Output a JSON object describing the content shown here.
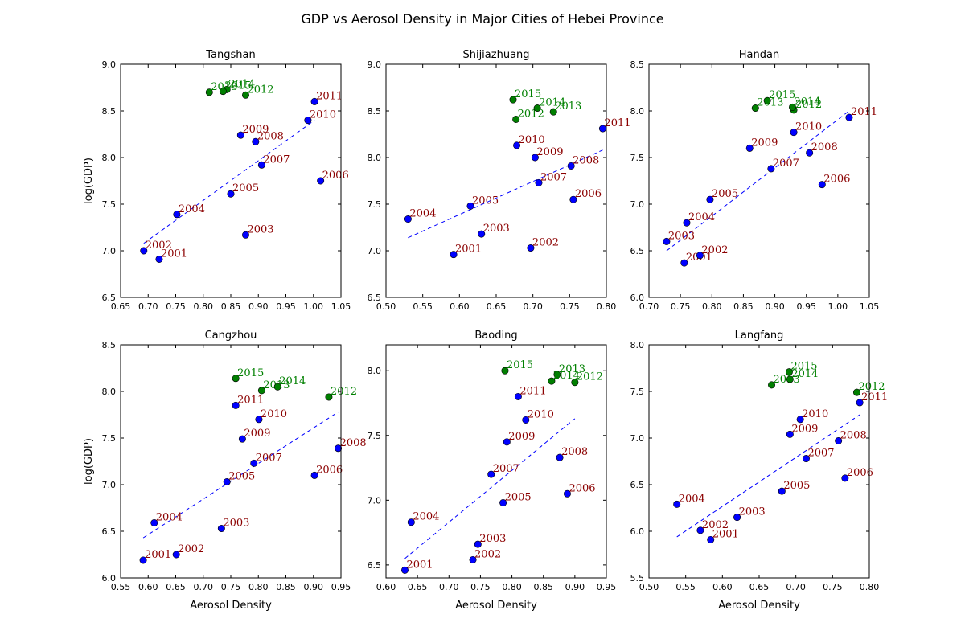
{
  "figure": {
    "title": "GDP vs Aerosol Density in Major Cities of Hebei Province"
  },
  "colors": {
    "before_point": "#0000ff",
    "before_label": "#8b0000",
    "after_point": "#007f00",
    "after_label": "#008000",
    "trend": "#0000ff"
  },
  "chart_data": [
    {
      "type": "scatter",
      "title": "Tangshan",
      "xlabel": "",
      "ylabel": "log(GDP)",
      "xlim": [
        0.65,
        1.05
      ],
      "ylim": [
        6.5,
        9.0
      ],
      "xticks": [
        0.65,
        0.7,
        0.75,
        0.8,
        0.85,
        0.9,
        0.95,
        1.0,
        1.05
      ],
      "yticks": [
        6.5,
        7.0,
        7.5,
        8.0,
        8.5,
        9.0
      ],
      "xtick_labels": [
        "0.65",
        "0.70",
        "0.75",
        "0.80",
        "0.85",
        "0.90",
        "0.95",
        "1.00",
        "1.05"
      ],
      "ytick_labels": [
        "6.5",
        "7.0",
        "7.5",
        "8.0",
        "8.5",
        "9.0"
      ],
      "trend": {
        "x": [
          0.692,
          1.002
        ],
        "y": [
          7.08,
          8.4
        ]
      },
      "series": [
        {
          "points": [
            {
              "label": "2001",
              "x": 0.72,
              "y": 6.91
            },
            {
              "label": "2002",
              "x": 0.692,
              "y": 7.0
            },
            {
              "label": "2003",
              "x": 0.877,
              "y": 7.17
            },
            {
              "label": "2004",
              "x": 0.752,
              "y": 7.39
            },
            {
              "label": "2005",
              "x": 0.85,
              "y": 7.61
            },
            {
              "label": "2006",
              "x": 1.013,
              "y": 7.75
            },
            {
              "label": "2007",
              "x": 0.906,
              "y": 7.92
            },
            {
              "label": "2008",
              "x": 0.895,
              "y": 8.17
            },
            {
              "label": "2009",
              "x": 0.868,
              "y": 8.24
            },
            {
              "label": "2010",
              "x": 0.99,
              "y": 8.4
            },
            {
              "label": "2011",
              "x": 1.002,
              "y": 8.6
            }
          ]
        },
        {
          "points": [
            {
              "label": "2012",
              "x": 0.877,
              "y": 8.67
            },
            {
              "label": "2013",
              "x": 0.811,
              "y": 8.7
            },
            {
              "label": "2014",
              "x": 0.843,
              "y": 8.73
            },
            {
              "label": "2015",
              "x": 0.836,
              "y": 8.71
            }
          ]
        }
      ]
    },
    {
      "type": "scatter",
      "title": "Shijiazhuang",
      "xlabel": "",
      "ylabel": "",
      "xlim": [
        0.5,
        0.8
      ],
      "ylim": [
        6.5,
        9.0
      ],
      "xticks": [
        0.5,
        0.55,
        0.6,
        0.65,
        0.7,
        0.75,
        0.8
      ],
      "yticks": [
        6.5,
        7.0,
        7.5,
        8.0,
        8.5,
        9.0
      ],
      "xtick_labels": [
        "0.50",
        "0.55",
        "0.60",
        "0.65",
        "0.70",
        "0.75",
        "0.80"
      ],
      "ytick_labels": [
        "6.5",
        "7.0",
        "7.5",
        "8.0",
        "8.5",
        "9.0"
      ],
      "trend": {
        "x": [
          0.53,
          0.795
        ],
        "y": [
          7.14,
          8.08
        ]
      },
      "series": [
        {
          "points": [
            {
              "label": "2001",
              "x": 0.592,
              "y": 6.96
            },
            {
              "label": "2002",
              "x": 0.697,
              "y": 7.03
            },
            {
              "label": "2003",
              "x": 0.63,
              "y": 7.18
            },
            {
              "label": "2004",
              "x": 0.53,
              "y": 7.34
            },
            {
              "label": "2005",
              "x": 0.615,
              "y": 7.48
            },
            {
              "label": "2006",
              "x": 0.755,
              "y": 7.55
            },
            {
              "label": "2007",
              "x": 0.708,
              "y": 7.73
            },
            {
              "label": "2008",
              "x": 0.752,
              "y": 7.91
            },
            {
              "label": "2009",
              "x": 0.703,
              "y": 8.0
            },
            {
              "label": "2010",
              "x": 0.678,
              "y": 8.13
            },
            {
              "label": "2011",
              "x": 0.795,
              "y": 8.31
            }
          ]
        },
        {
          "points": [
            {
              "label": "2012",
              "x": 0.677,
              "y": 8.41
            },
            {
              "label": "2013",
              "x": 0.728,
              "y": 8.49
            },
            {
              "label": "2014",
              "x": 0.706,
              "y": 8.53
            },
            {
              "label": "2015",
              "x": 0.673,
              "y": 8.62
            }
          ]
        }
      ]
    },
    {
      "type": "scatter",
      "title": "Handan",
      "xlabel": "",
      "ylabel": "",
      "xlim": [
        0.7,
        1.05
      ],
      "ylim": [
        6.0,
        8.5
      ],
      "xticks": [
        0.7,
        0.75,
        0.8,
        0.85,
        0.9,
        0.95,
        1.0,
        1.05
      ],
      "yticks": [
        6.0,
        6.5,
        7.0,
        7.5,
        8.0,
        8.5
      ],
      "xtick_labels": [
        "0.70",
        "0.75",
        "0.80",
        "0.85",
        "0.90",
        "0.95",
        "1.00",
        "1.05"
      ],
      "ytick_labels": [
        "6.0",
        "6.5",
        "7.0",
        "7.5",
        "8.0",
        "8.5"
      ],
      "trend": {
        "x": [
          0.728,
          1.018
        ],
        "y": [
          6.5,
          8.0
        ]
      },
      "series": [
        {
          "points": [
            {
              "label": "2001",
              "x": 0.756,
              "y": 6.37
            },
            {
              "label": "2002",
              "x": 0.781,
              "y": 6.45
            },
            {
              "label": "2003",
              "x": 0.728,
              "y": 6.6
            },
            {
              "label": "2004",
              "x": 0.76,
              "y": 6.8
            },
            {
              "label": "2005",
              "x": 0.797,
              "y": 7.05
            },
            {
              "label": "2006",
              "x": 0.975,
              "y": 7.21
            },
            {
              "label": "2007",
              "x": 0.894,
              "y": 7.38
            },
            {
              "label": "2008",
              "x": 0.955,
              "y": 7.55
            },
            {
              "label": "2009",
              "x": 0.86,
              "y": 7.6
            },
            {
              "label": "2010",
              "x": 0.93,
              "y": 7.77
            },
            {
              "label": "2011",
              "x": 1.018,
              "y": 7.93
            }
          ]
        },
        {
          "points": [
            {
              "label": "2012",
              "x": 0.93,
              "y": 8.01
            },
            {
              "label": "2013",
              "x": 0.869,
              "y": 8.03
            },
            {
              "label": "2014",
              "x": 0.928,
              "y": 8.04
            },
            {
              "label": "2015",
              "x": 0.888,
              "y": 8.11
            }
          ]
        }
      ]
    },
    {
      "type": "scatter",
      "title": "Cangzhou",
      "xlabel": "Aerosol Density",
      "ylabel": "log(GDP)",
      "xlim": [
        0.55,
        0.95
      ],
      "ylim": [
        6.0,
        8.5
      ],
      "xticks": [
        0.55,
        0.6,
        0.65,
        0.7,
        0.75,
        0.8,
        0.85,
        0.9,
        0.95
      ],
      "yticks": [
        6.0,
        6.5,
        7.0,
        7.5,
        8.0,
        8.5
      ],
      "xtick_labels": [
        "0.55",
        "0.60",
        "0.65",
        "0.70",
        "0.75",
        "0.80",
        "0.85",
        "0.90",
        "0.95"
      ],
      "ytick_labels": [
        "6.0",
        "6.5",
        "7.0",
        "7.5",
        "8.0",
        "8.5"
      ],
      "trend": {
        "x": [
          0.591,
          0.945
        ],
        "y": [
          6.43,
          7.78
        ]
      },
      "series": [
        {
          "points": [
            {
              "label": "2001",
              "x": 0.591,
              "y": 6.19
            },
            {
              "label": "2002",
              "x": 0.651,
              "y": 6.25
            },
            {
              "label": "2003",
              "x": 0.733,
              "y": 6.53
            },
            {
              "label": "2004",
              "x": 0.611,
              "y": 6.59
            },
            {
              "label": "2005",
              "x": 0.743,
              "y": 7.03
            },
            {
              "label": "2006",
              "x": 0.902,
              "y": 7.1
            },
            {
              "label": "2007",
              "x": 0.792,
              "y": 7.23
            },
            {
              "label": "2008",
              "x": 0.945,
              "y": 7.39
            },
            {
              "label": "2009",
              "x": 0.771,
              "y": 7.49
            },
            {
              "label": "2010",
              "x": 0.801,
              "y": 7.7
            },
            {
              "label": "2011",
              "x": 0.759,
              "y": 7.85
            }
          ]
        },
        {
          "points": [
            {
              "label": "2012",
              "x": 0.928,
              "y": 7.94
            },
            {
              "label": "2013",
              "x": 0.806,
              "y": 8.01
            },
            {
              "label": "2014",
              "x": 0.835,
              "y": 8.05
            },
            {
              "label": "2015",
              "x": 0.759,
              "y": 8.14
            }
          ]
        }
      ]
    },
    {
      "type": "scatter",
      "title": "Baoding",
      "xlabel": "Aerosol Density",
      "ylabel": "",
      "xlim": [
        0.6,
        0.95
      ],
      "ylim": [
        6.4,
        8.2
      ],
      "xticks": [
        0.6,
        0.65,
        0.7,
        0.75,
        0.8,
        0.85,
        0.9,
        0.95
      ],
      "yticks": [
        6.5,
        7.0,
        7.5,
        8.0
      ],
      "xtick_labels": [
        "0.60",
        "0.65",
        "0.70",
        "0.75",
        "0.80",
        "0.85",
        "0.90",
        "0.95"
      ],
      "ytick_labels": [
        "6.5",
        "7.0",
        "7.5",
        "8.0"
      ],
      "trend": {
        "x": [
          0.63,
          0.9
        ],
        "y": [
          6.55,
          7.63
        ]
      },
      "series": [
        {
          "points": [
            {
              "label": "2001",
              "x": 0.63,
              "y": 6.46
            },
            {
              "label": "2002",
              "x": 0.738,
              "y": 6.54
            },
            {
              "label": "2003",
              "x": 0.746,
              "y": 6.66
            },
            {
              "label": "2004",
              "x": 0.64,
              "y": 6.83
            },
            {
              "label": "2005",
              "x": 0.786,
              "y": 6.98
            },
            {
              "label": "2006",
              "x": 0.888,
              "y": 7.05
            },
            {
              "label": "2007",
              "x": 0.767,
              "y": 7.2
            },
            {
              "label": "2008",
              "x": 0.876,
              "y": 7.33
            },
            {
              "label": "2009",
              "x": 0.792,
              "y": 7.45
            },
            {
              "label": "2010",
              "x": 0.822,
              "y": 7.62
            },
            {
              "label": "2011",
              "x": 0.81,
              "y": 7.8
            }
          ]
        },
        {
          "points": [
            {
              "label": "2012",
              "x": 0.9,
              "y": 7.91
            },
            {
              "label": "2013",
              "x": 0.872,
              "y": 7.97
            },
            {
              "label": "2014",
              "x": 0.863,
              "y": 7.92
            },
            {
              "label": "2015",
              "x": 0.789,
              "y": 8.0
            }
          ]
        }
      ]
    },
    {
      "type": "scatter",
      "title": "Langfang",
      "xlabel": "Aerosol Density",
      "ylabel": "",
      "xlim": [
        0.5,
        0.8
      ],
      "ylim": [
        5.5,
        8.0
      ],
      "xticks": [
        0.5,
        0.55,
        0.6,
        0.65,
        0.7,
        0.75,
        0.8
      ],
      "yticks": [
        5.5,
        6.0,
        6.5,
        7.0,
        7.5,
        8.0
      ],
      "xtick_labels": [
        "0.50",
        "0.55",
        "0.60",
        "0.65",
        "0.70",
        "0.75",
        "0.80"
      ],
      "ytick_labels": [
        "5.5",
        "6.0",
        "6.5",
        "7.0",
        "7.5",
        "8.0"
      ],
      "trend": {
        "x": [
          0.538,
          0.787
        ],
        "y": [
          5.94,
          7.25
        ]
      },
      "series": [
        {
          "points": [
            {
              "label": "2001",
              "x": 0.584,
              "y": 5.91
            },
            {
              "label": "2002",
              "x": 0.57,
              "y": 6.01
            },
            {
              "label": "2003",
              "x": 0.62,
              "y": 6.15
            },
            {
              "label": "2004",
              "x": 0.538,
              "y": 6.29
            },
            {
              "label": "2005",
              "x": 0.681,
              "y": 6.43
            },
            {
              "label": "2006",
              "x": 0.767,
              "y": 6.57
            },
            {
              "label": "2007",
              "x": 0.714,
              "y": 6.78
            },
            {
              "label": "2008",
              "x": 0.758,
              "y": 6.97
            },
            {
              "label": "2009",
              "x": 0.692,
              "y": 7.04
            },
            {
              "label": "2010",
              "x": 0.706,
              "y": 7.2
            },
            {
              "label": "2011",
              "x": 0.787,
              "y": 7.38
            }
          ]
        },
        {
          "points": [
            {
              "label": "2012",
              "x": 0.783,
              "y": 7.49
            },
            {
              "label": "2013",
              "x": 0.667,
              "y": 7.57
            },
            {
              "label": "2014",
              "x": 0.692,
              "y": 7.63
            },
            {
              "label": "2015",
              "x": 0.691,
              "y": 7.71
            }
          ]
        }
      ]
    }
  ]
}
